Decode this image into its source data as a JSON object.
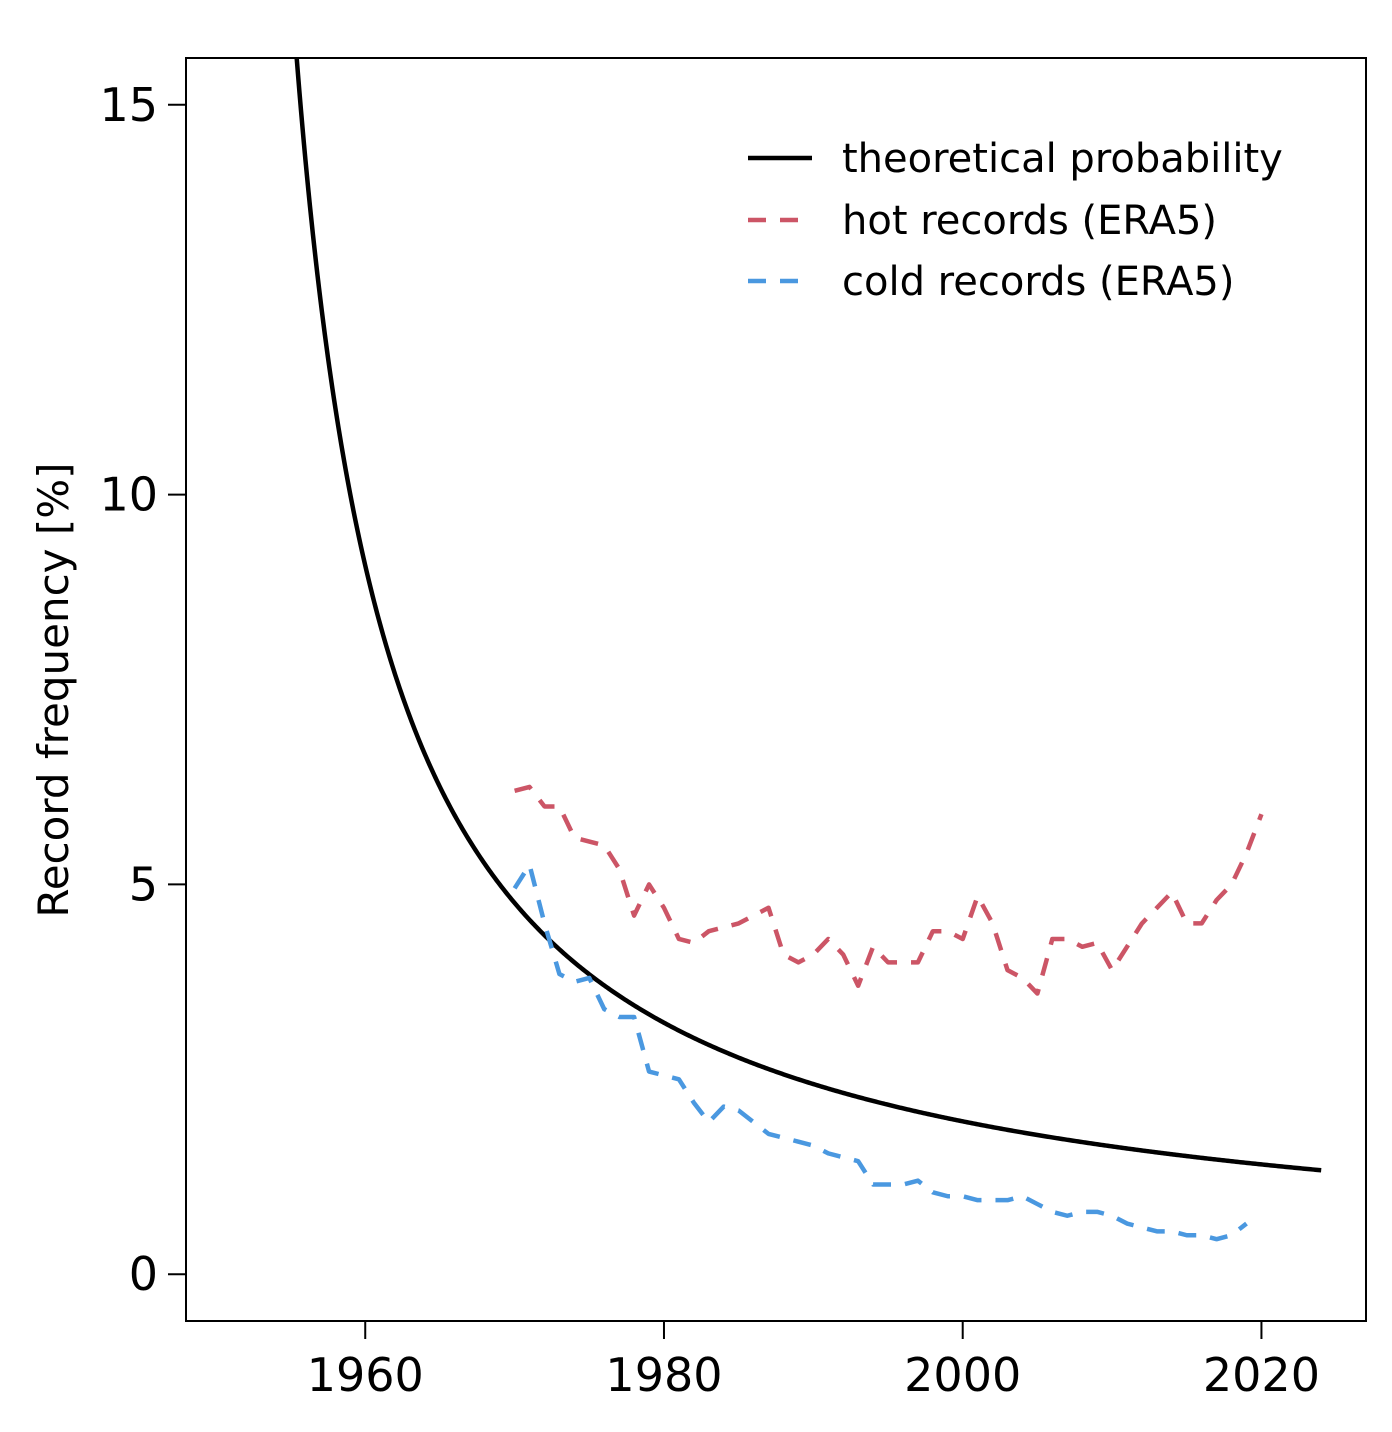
{
  "chart_data": {
    "type": "line",
    "title": "",
    "xlabel": "",
    "ylabel": "Record frequency [%]",
    "xlim": [
      1948,
      2027
    ],
    "ylim": [
      -0.6,
      15.6
    ],
    "x_ticks": [
      1960,
      1980,
      2000,
      2020
    ],
    "x_tick_labels": [
      "1960",
      "1980",
      "2000",
      "2020"
    ],
    "y_ticks": [
      0,
      5,
      10,
      15
    ],
    "y_tick_labels": [
      "0",
      "5",
      "10",
      "15"
    ],
    "legend_position": "top-right",
    "series": [
      {
        "name": "theoretical probability",
        "color": "#000000",
        "style": "solid",
        "formula": "100 / (year - 1950 + 1)",
        "x_start": 1955.2,
        "x_end": 2024
      },
      {
        "name": "hot records (ERA5)",
        "color": "#cc5566",
        "style": "dashed",
        "x": [
          1970,
          1971,
          1972,
          1973,
          1974,
          1975,
          1976,
          1977,
          1978,
          1979,
          1980,
          1981,
          1982,
          1983,
          1984,
          1985,
          1986,
          1987,
          1988,
          1989,
          1990,
          1991,
          1992,
          1993,
          1994,
          1995,
          1996,
          1997,
          1998,
          1999,
          2000,
          2001,
          2002,
          2003,
          2004,
          2005,
          2006,
          2007,
          2008,
          2009,
          2010,
          2011,
          2012,
          2013,
          2014,
          2015,
          2016,
          2017,
          2018,
          2019,
          2020
        ],
        "values": [
          6.2,
          6.25,
          6.0,
          6.0,
          5.6,
          5.55,
          5.5,
          5.2,
          4.6,
          5.0,
          4.7,
          4.3,
          4.25,
          4.4,
          4.45,
          4.5,
          4.6,
          4.7,
          4.1,
          4.0,
          4.1,
          4.3,
          4.1,
          3.7,
          4.2,
          4.0,
          4.0,
          4.0,
          4.4,
          4.4,
          4.3,
          4.85,
          4.5,
          3.9,
          3.8,
          3.6,
          4.3,
          4.3,
          4.2,
          4.25,
          3.9,
          4.2,
          4.5,
          4.7,
          4.9,
          4.5,
          4.5,
          4.8,
          5.0,
          5.4,
          5.9
        ]
      },
      {
        "name": "cold records (ERA5)",
        "color": "#4a98e0",
        "style": "dashed",
        "x": [
          1970,
          1971,
          1972,
          1973,
          1974,
          1975,
          1976,
          1977,
          1978,
          1979,
          1980,
          1981,
          1982,
          1983,
          1984,
          1985,
          1986,
          1987,
          1988,
          1989,
          1990,
          1991,
          1992,
          1993,
          1994,
          1995,
          1996,
          1997,
          1998,
          1999,
          2000,
          2001,
          2002,
          2003,
          2004,
          2005,
          2006,
          2007,
          2008,
          2009,
          2010,
          2011,
          2012,
          2013,
          2014,
          2015,
          2016,
          2017,
          2018,
          2019
        ],
        "values": [
          4.95,
          5.25,
          4.5,
          3.85,
          3.75,
          3.8,
          3.4,
          3.3,
          3.3,
          2.6,
          2.55,
          2.5,
          2.2,
          1.95,
          2.15,
          2.1,
          1.95,
          1.8,
          1.75,
          1.7,
          1.65,
          1.55,
          1.5,
          1.45,
          1.15,
          1.15,
          1.15,
          1.2,
          1.05,
          1.0,
          1.0,
          0.95,
          0.95,
          0.95,
          1.0,
          0.9,
          0.8,
          0.75,
          0.8,
          0.8,
          0.75,
          0.65,
          0.6,
          0.55,
          0.55,
          0.5,
          0.5,
          0.45,
          0.5,
          0.65
        ]
      }
    ]
  }
}
